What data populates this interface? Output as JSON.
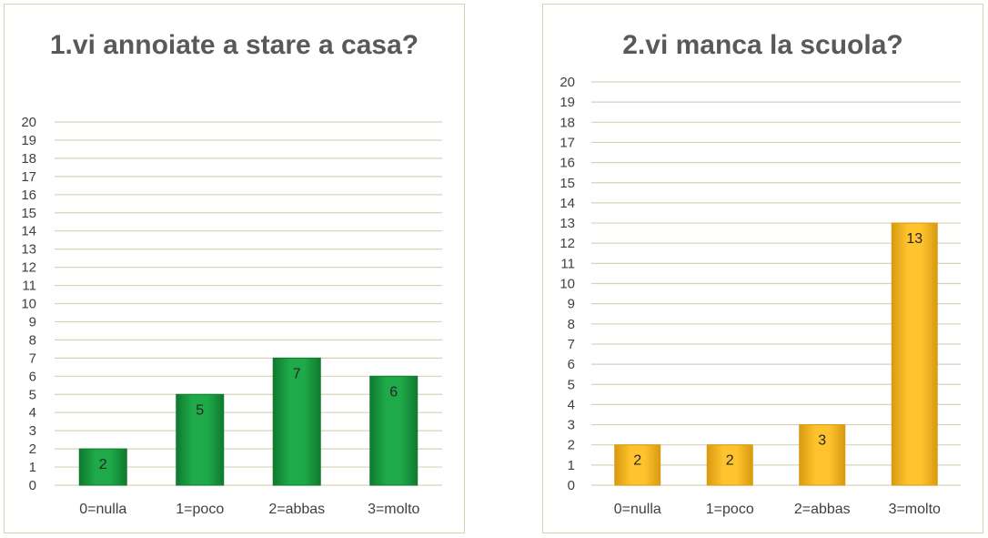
{
  "colors": {
    "green_bar": "#1faa4a",
    "green_bar_dark": "#0f7a2e",
    "orange_bar": "#ffc32e",
    "orange_bar_dark": "#d99a10",
    "grid": "#d9d2b8",
    "border": "#d9ceb6"
  },
  "chart_data": [
    {
      "type": "bar",
      "title": "1.vi annoiate a stare a casa?",
      "categories": [
        "0=nulla",
        "1=poco",
        "2=abbas",
        "3=molto"
      ],
      "values": [
        2,
        5,
        7,
        6
      ],
      "ylim": [
        0,
        20
      ],
      "ytick_step": 1,
      "grid": true,
      "legend": "none",
      "bar_color": "green"
    },
    {
      "type": "bar",
      "title": "2.vi manca la scuola?",
      "categories": [
        "0=nulla",
        "1=poco",
        "2=abbas",
        "3=molto"
      ],
      "values": [
        2,
        2,
        3,
        13
      ],
      "ylim": [
        0,
        20
      ],
      "ytick_step": 1,
      "grid": true,
      "legend": "none",
      "bar_color": "orange"
    }
  ]
}
